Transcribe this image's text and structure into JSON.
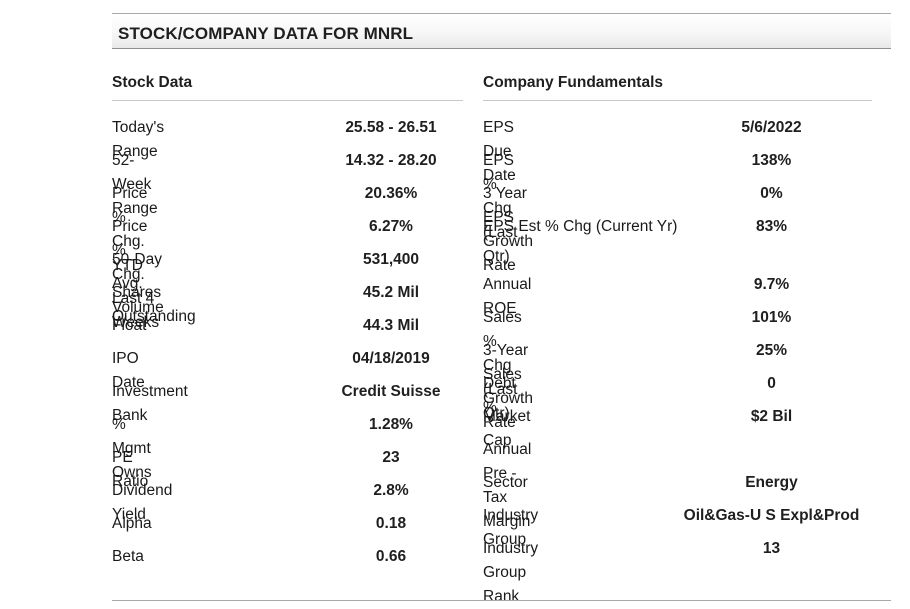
{
  "title": "STOCK/COMPANY DATA FOR MNRL",
  "stock_data": {
    "heading": "Stock Data",
    "rows": [
      {
        "label": "Today's Range",
        "value": "25.58  -  26.51"
      },
      {
        "label": "52-Week Range",
        "value": "14.32  -  28.20"
      },
      {
        "label": "Price % Chg. YTD",
        "value": "20.36%"
      },
      {
        "label": "Price % Chg. Last 4 Weeks",
        "value": "6.27%"
      },
      {
        "label": "50-Day Avg. Volume",
        "value": "531,400"
      },
      {
        "label": "Shares Outstanding",
        "value": "45.2 Mil"
      },
      {
        "label": "Float",
        "value": "44.3 Mil"
      },
      {
        "label": "IPO Date",
        "value": "04/18/2019"
      },
      {
        "label": "Investment Bank",
        "value": "Credit Suisse"
      },
      {
        "label": "% Mgmt Owns",
        "value": "1.28%"
      },
      {
        "label": "PE Ratio",
        "value": "23"
      },
      {
        "label": "Dividend Yield",
        "value": "2.8%"
      },
      {
        "label": "Alpha",
        "value": "0.18"
      },
      {
        "label": "Beta",
        "value": "0.66"
      }
    ]
  },
  "company_fundamentals": {
    "heading": "Company Fundamentals",
    "rows": [
      {
        "label": "EPS Due Date",
        "value": "5/6/2022"
      },
      {
        "label": "EPS % Chg (Last Qtr)",
        "value": "138%"
      },
      {
        "label": "3 Year EPS Growth Rate",
        "value": "0%"
      },
      {
        "label": "EPS Est % Chg (Current Yr)",
        "value": "83%"
      },
      {
        "label": "Annual ROE",
        "value": "9.7%"
      },
      {
        "label": "Sales % Chg (Last Qtr)",
        "value": "101%"
      },
      {
        "label": "3-Year Sales Growth Rate",
        "value": "25%"
      },
      {
        "label": "Debt %",
        "value": "0"
      },
      {
        "label": "Market Cap",
        "value": "$2 Bil"
      },
      {
        "label": "Annual Pre -Tax Margin",
        "value": ""
      },
      {
        "label": "Sector",
        "value": "Energy"
      },
      {
        "label": "Industry Group",
        "value": "Oil&Gas-U S Expl&Prod"
      },
      {
        "label": "Industry Group Rank",
        "value": "13"
      }
    ]
  }
}
